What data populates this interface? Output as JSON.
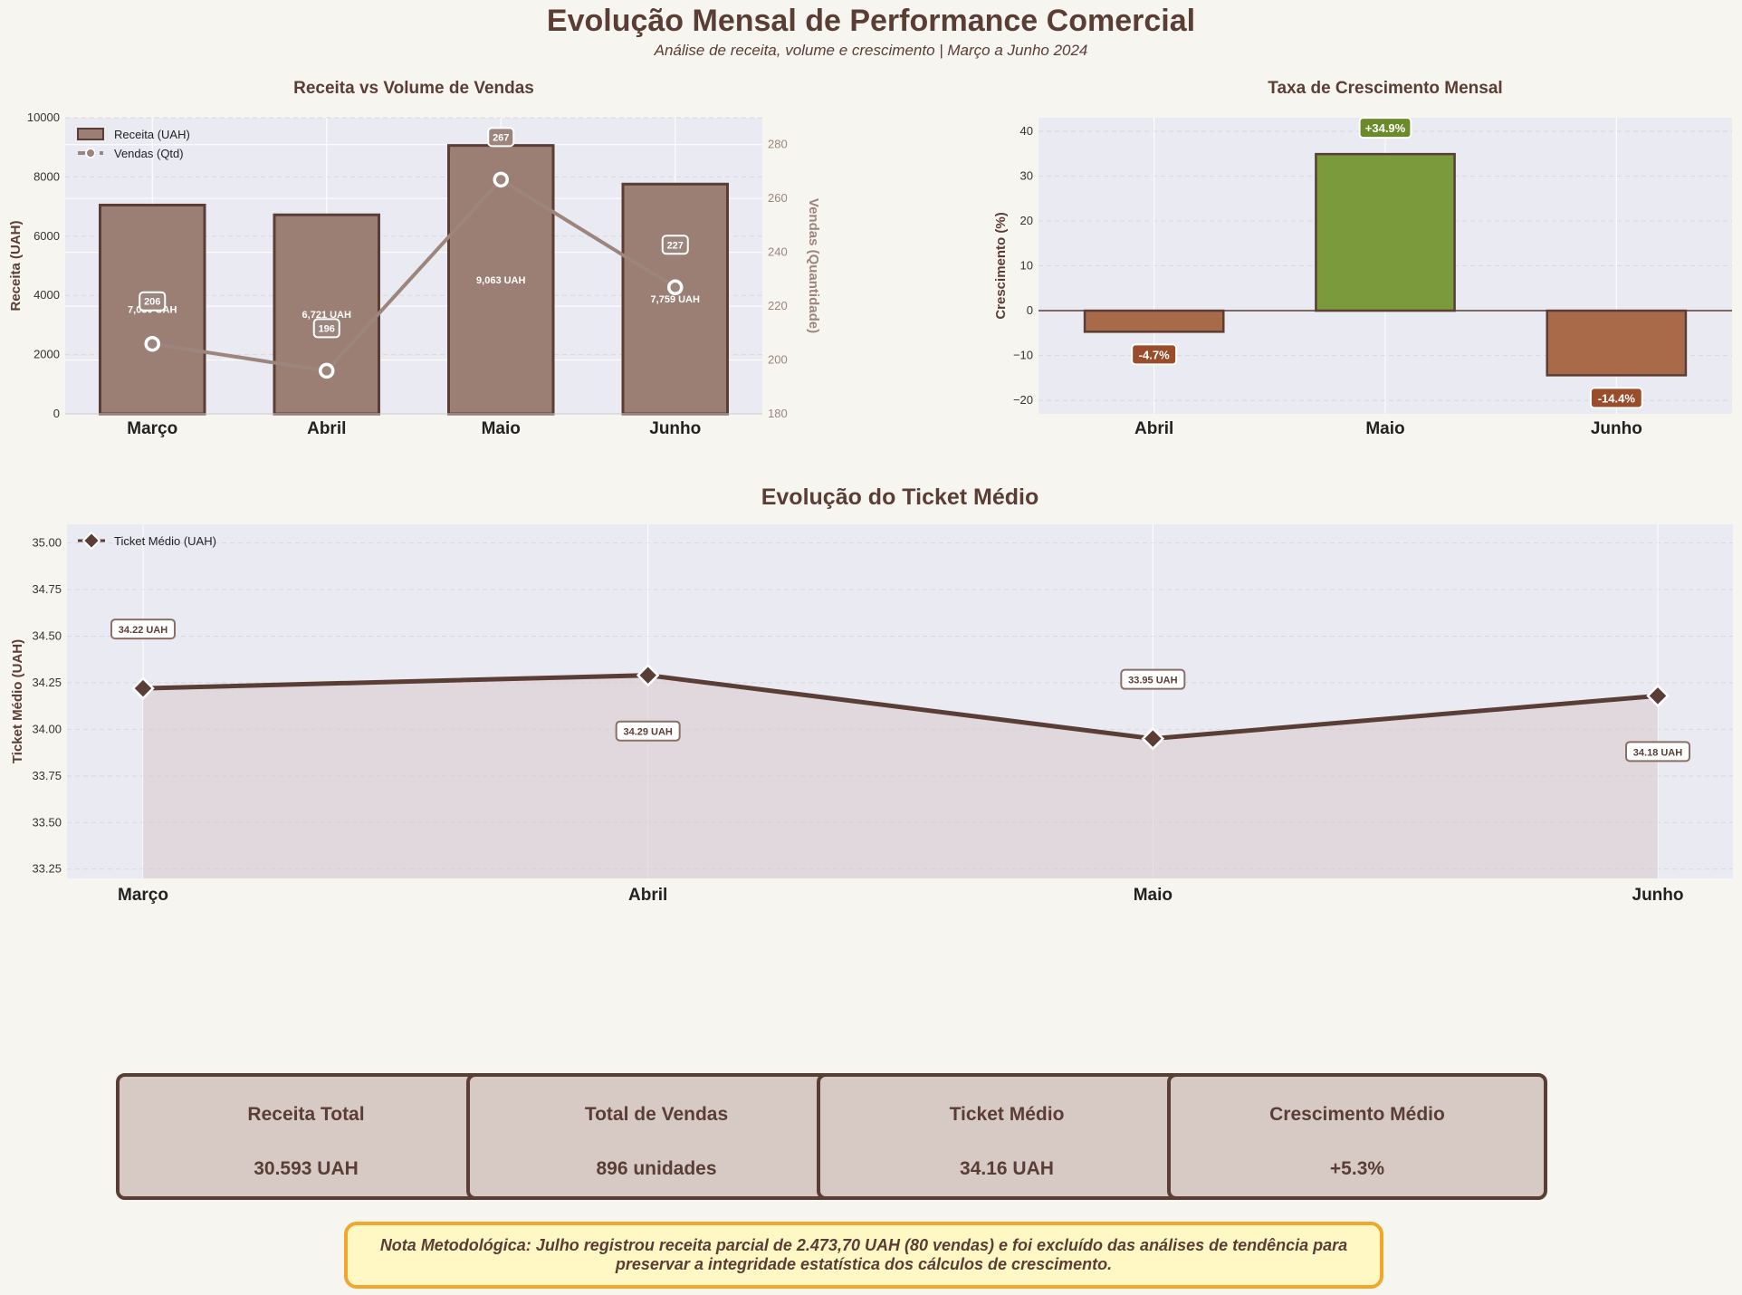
{
  "title": "Evolução Mensal de Performance Comercial",
  "subtitle": "Análise de receita, volume e crescimento | Março a Junho 2024",
  "colors": {
    "bar": "#9c7f74",
    "bar_edge": "#5a3e36",
    "line": "#9c857d",
    "positive": "#7b9a3c",
    "negative": "#a96a4a",
    "ticket": "#5a3e36",
    "panel": "#eaeaf2",
    "background": "#f7f5f0",
    "note_border": "#f2a72b",
    "note_bg": "#fff7c4"
  },
  "chart_data": [
    {
      "type": "bar",
      "title": "Receita vs Volume de Vendas",
      "categories": [
        "Março",
        "Abril",
        "Maio",
        "Junho"
      ],
      "ylabel": "Receita (UAH)",
      "y2label": "Vendas (Quantidade)",
      "ylim": [
        0,
        10000
      ],
      "y2lim": [
        180,
        290
      ],
      "yticks": [
        0,
        2000,
        4000,
        6000,
        8000,
        10000
      ],
      "y2ticks": [
        180,
        200,
        220,
        240,
        260,
        280
      ],
      "legend": "top-left",
      "series": [
        {
          "name": "Receita (UAH)",
          "type": "bar",
          "values": [
            7050,
            6721,
            9063,
            7759
          ],
          "labels": [
            "7,050 UAH",
            "6,721 UAH",
            "9,063 UAH",
            "7,759 UAH"
          ]
        },
        {
          "name": "Vendas (Qtd)",
          "type": "line",
          "axis": "right",
          "values": [
            206,
            196,
            267,
            227
          ],
          "labels": [
            "206",
            "196",
            "267",
            "227"
          ]
        }
      ]
    },
    {
      "type": "bar",
      "title": "Taxa de Crescimento Mensal",
      "categories": [
        "Abril",
        "Maio",
        "Junho"
      ],
      "ylabel": "Crescimento (%)",
      "ylim": [
        -23,
        43
      ],
      "yticks": [
        -20,
        -10,
        0,
        10,
        20,
        30,
        40
      ],
      "values": [
        -4.7,
        34.9,
        -14.4
      ],
      "labels": [
        "-4.7%",
        "+34.9%",
        "-14.4%"
      ]
    },
    {
      "type": "area",
      "title": "Evolução do Ticket Médio",
      "categories": [
        "Março",
        "Abril",
        "Maio",
        "Junho"
      ],
      "ylabel": "Ticket Médio (UAH)",
      "ylim": [
        33.2,
        35.1
      ],
      "yticks": [
        "33.25",
        "33.50",
        "33.75",
        "34.00",
        "34.25",
        "34.50",
        "34.75",
        "35.00"
      ],
      "legend": "top-left",
      "series": [
        {
          "name": "Ticket Médio (UAH)",
          "values": [
            34.22,
            34.29,
            33.95,
            34.18
          ],
          "labels": [
            "34.22 UAH",
            "34.29 UAH",
            "33.95 UAH",
            "34.18 UAH"
          ]
        }
      ]
    }
  ],
  "kpis": [
    {
      "label": "Receita Total",
      "value": "30.593 UAH"
    },
    {
      "label": "Total de Vendas",
      "value": "896 unidades"
    },
    {
      "label": "Ticket Médio",
      "value": "34.16 UAH"
    },
    {
      "label": "Crescimento Médio",
      "value": "+5.3%"
    }
  ],
  "note": "Nota Metodológica: Julho registrou receita parcial de 2.473,70 UAH (80 vendas) e foi excluído das análises de tendência para preservar a integridade estatística dos cálculos de crescimento."
}
